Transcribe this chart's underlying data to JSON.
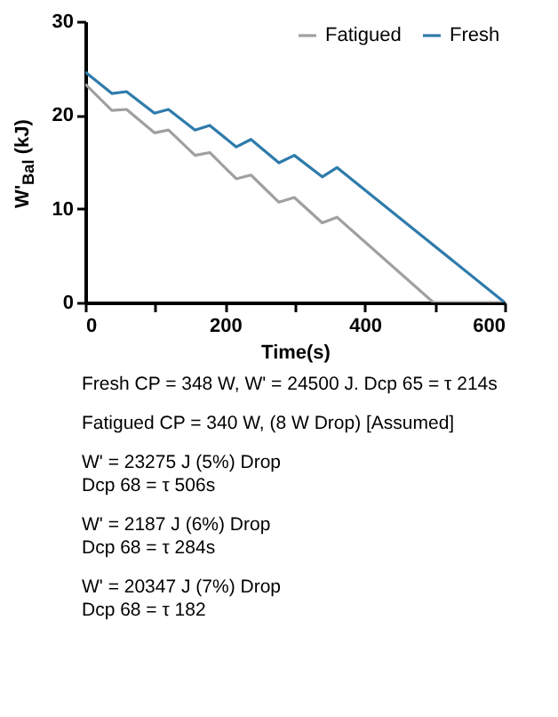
{
  "chart_data": {
    "type": "line",
    "xlabel": "Time(s)",
    "ylabel": "W'$_{Bal}$ (kJ)",
    "xlim": [
      0,
      600
    ],
    "ylim": [
      0,
      30
    ],
    "xticks": [
      0,
      {
        "value": 100,
        "label": null
      },
      200,
      {
        "value": 300,
        "label": null
      },
      400,
      {
        "value": 500,
        "label": null
      },
      600
    ],
    "yticks": [
      0,
      10,
      20,
      30
    ],
    "grid": false,
    "legend": "top right",
    "marker": "none",
    "line_style": "solid",
    "series": [
      {
        "name": "Fatigued",
        "color": "#a0a0a0",
        "x": [
          0,
          38,
          59,
          99,
          119,
          157,
          178,
          216,
          237,
          277,
          299,
          339,
          360,
          498,
          600
        ],
        "values": [
          23.3,
          20.5,
          20.6,
          18.1,
          18.4,
          15.7,
          16.0,
          13.2,
          13.6,
          10.7,
          11.2,
          8.5,
          9.1,
          0,
          0
        ]
      },
      {
        "name": "Fresh",
        "color": "#2e7bab",
        "x": [
          0,
          38,
          59,
          99,
          119,
          157,
          178,
          216,
          237,
          277,
          299,
          339,
          360,
          600
        ],
        "values": [
          24.6,
          22.3,
          22.5,
          20.2,
          20.6,
          18.4,
          18.9,
          16.6,
          17.4,
          14.9,
          15.7,
          13.4,
          14.4,
          0
        ]
      }
    ],
    "annotations": [
      "Fresh CP = 348 W, W' = 24500 J. Dcp 65 = τ 214s",
      "Fatigued CP = 340 W, (8 W Drop) [Assumed]",
      "W' = 23275 J (5%) Drop\nDcp 68 = τ 506s",
      "W' = 2187 J (6%) Drop\nDcp 68 = τ 284s",
      "W' = 20347 J (7%) Drop\nDcp 68 = τ 182"
    ]
  }
}
